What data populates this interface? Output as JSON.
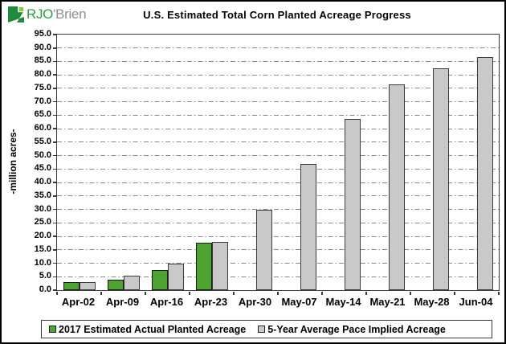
{
  "logo": {
    "brand_green": "RJO",
    "brand_gray": "'Brien"
  },
  "chart_data": {
    "type": "bar",
    "title": "U.S. Estimated Total Corn Planted Acreage Progress",
    "xlabel": "",
    "ylabel": "-million acres-",
    "ylim": [
      0,
      95
    ],
    "ytick_step": 5,
    "grid": "horizontal dash-dot",
    "legend_position": "bottom",
    "categories": [
      "Apr-02",
      "Apr-09",
      "Apr-16",
      "Apr-23",
      "Apr-30",
      "May-07",
      "May-14",
      "May-21",
      "May-28",
      "Jun-04"
    ],
    "series": [
      {
        "name": "2017 Estimated Actual Planted Acreage",
        "color": "#4da32f",
        "border_color": "#1a1a1a",
        "values": [
          3.0,
          4.0,
          7.5,
          17.5,
          null,
          null,
          null,
          null,
          null,
          null
        ]
      },
      {
        "name": "5-Year Average Pace Implied Acreage",
        "color": "#c9c9c9",
        "border_color": "#3a3a3a",
        "values": [
          3.0,
          5.5,
          10.0,
          18.0,
          30.0,
          47.0,
          63.5,
          76.5,
          82.5,
          86.5
        ]
      }
    ],
    "grid_color": "#8a8a8a",
    "axis_color": "#3a3a3a"
  }
}
